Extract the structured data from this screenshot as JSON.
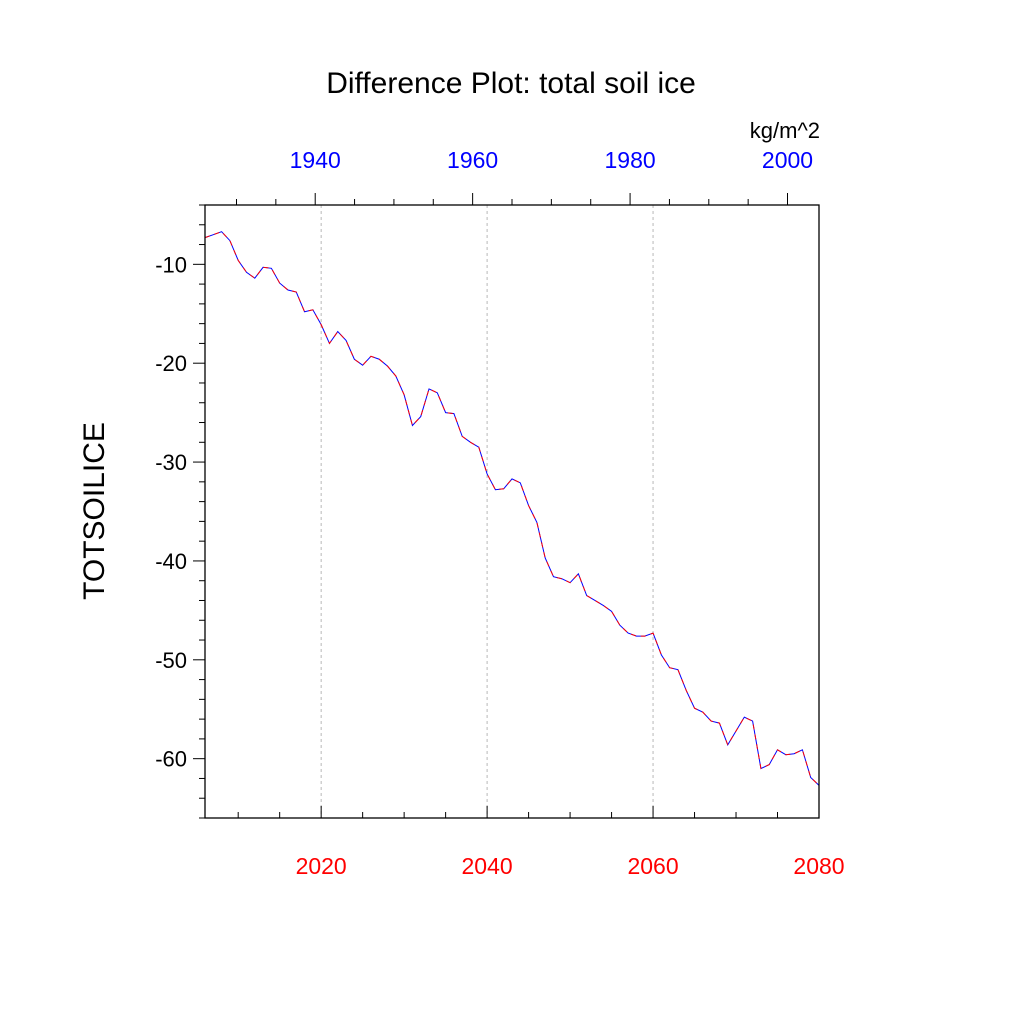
{
  "chart_data": {
    "type": "line",
    "title": "Difference Plot: total soil ice",
    "units": "kg/m^2",
    "ylabel": "TOTSOILICE",
    "ylim": [
      -66,
      -4
    ],
    "yticks": [
      -10,
      -20,
      -30,
      -40,
      -50,
      -60
    ],
    "yticks_minor_step": 2,
    "x_bottom": {
      "range": [
        2006,
        2080
      ],
      "ticks": [
        2020,
        2040,
        2060,
        2080
      ],
      "minor_step": 5,
      "color": "#ff0000"
    },
    "x_top": {
      "range": [
        1926,
        2004
      ],
      "ticks": [
        1940,
        1960,
        1980,
        2000
      ],
      "minor_step": 5,
      "color": "#0000ff"
    },
    "grid": {
      "vertical": true,
      "at": [
        2020,
        2040,
        2060
      ],
      "style": "dashed"
    },
    "legend": "none",
    "line_colors": [
      "#0000ff",
      "#ff0000"
    ],
    "series": [
      {
        "x": [
          2006,
          2007,
          2008,
          2009,
          2010,
          2011,
          2012,
          2013,
          2014,
          2015,
          2016,
          2017,
          2018,
          2019,
          2020,
          2021,
          2022,
          2023,
          2024,
          2025,
          2026,
          2027,
          2028,
          2029,
          2030,
          2031,
          2032,
          2033,
          2034,
          2035,
          2036,
          2037,
          2038,
          2039,
          2040,
          2041,
          2042,
          2043,
          2044,
          2045,
          2046,
          2047,
          2048,
          2049,
          2050,
          2051,
          2052,
          2053,
          2054,
          2055,
          2056,
          2057,
          2058,
          2059,
          2060,
          2061,
          2062,
          2063,
          2064,
          2065,
          2066,
          2067,
          2068,
          2069,
          2070,
          2071,
          2072,
          2073,
          2074,
          2075,
          2076,
          2077,
          2078,
          2079,
          2080
        ],
        "values": [
          -7.3,
          -7.0,
          -6.7,
          -7.6,
          -9.6,
          -10.8,
          -11.4,
          -10.3,
          -10.4,
          -11.9,
          -12.6,
          -12.8,
          -14.8,
          -14.6,
          -16.1,
          -18.0,
          -16.8,
          -17.7,
          -19.6,
          -20.2,
          -19.3,
          -19.6,
          -20.3,
          -21.3,
          -23.2,
          -26.3,
          -25.4,
          -22.6,
          -23.0,
          -25.0,
          -25.1,
          -27.4,
          -28.0,
          -28.5,
          -31.2,
          -32.8,
          -32.7,
          -31.7,
          -32.1,
          -34.4,
          -36.1,
          -39.7,
          -41.6,
          -41.8,
          -42.2,
          -41.3,
          -43.5,
          -44.0,
          -44.5,
          -45.1,
          -46.5,
          -47.3,
          -47.6,
          -47.6,
          -47.3,
          -49.5,
          -50.8,
          -51.0,
          -53.1,
          -54.9,
          -55.3,
          -56.2,
          -56.4,
          -58.6,
          -57.2,
          -55.8,
          -56.2,
          -61.0,
          -60.6,
          -59.1,
          -59.6,
          -59.5,
          -59.1,
          -61.9,
          -62.7
        ]
      }
    ]
  }
}
